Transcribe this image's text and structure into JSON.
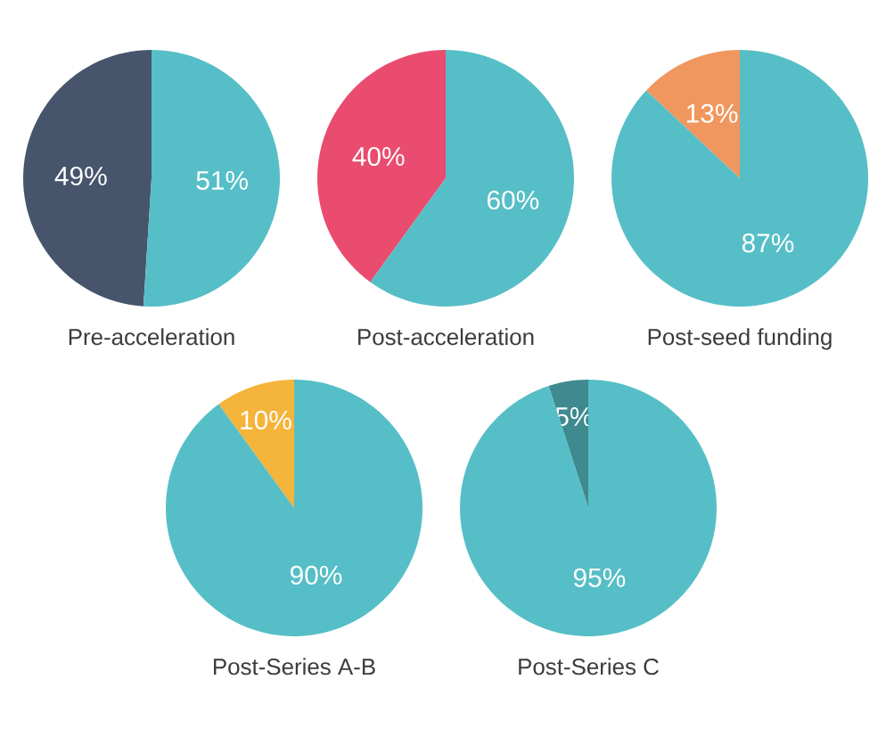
{
  "chart_data": [
    {
      "type": "pie",
      "title": "Pre-acceleration",
      "categories": [
        null,
        null
      ],
      "values": [
        49,
        51
      ],
      "colors": [
        "#46556b",
        "#56bec6"
      ],
      "value_labels": [
        "49%",
        "51%"
      ]
    },
    {
      "type": "pie",
      "title": "Post-acceleration",
      "categories": [
        null,
        null
      ],
      "values": [
        40,
        60
      ],
      "colors": [
        "#e94c6f",
        "#56bec6"
      ],
      "value_labels": [
        "40%",
        "60%"
      ]
    },
    {
      "type": "pie",
      "title": "Post-seed funding",
      "categories": [
        null,
        null
      ],
      "values": [
        13,
        87
      ],
      "colors": [
        "#f0975f",
        "#56bec6"
      ],
      "value_labels": [
        "13%",
        "87%"
      ]
    },
    {
      "type": "pie",
      "title": "Post-Series A-B",
      "categories": [
        null,
        null
      ],
      "values": [
        10,
        90
      ],
      "colors": [
        "#f5b43a",
        "#56bec6"
      ],
      "value_labels": [
        "10%",
        "90%"
      ]
    },
    {
      "type": "pie",
      "title": "Post-Series C",
      "categories": [
        null,
        null
      ],
      "values": [
        5,
        95
      ],
      "colors": [
        "#3e8a8e",
        "#56bec6"
      ],
      "value_labels": [
        "5%",
        "95%"
      ]
    }
  ]
}
